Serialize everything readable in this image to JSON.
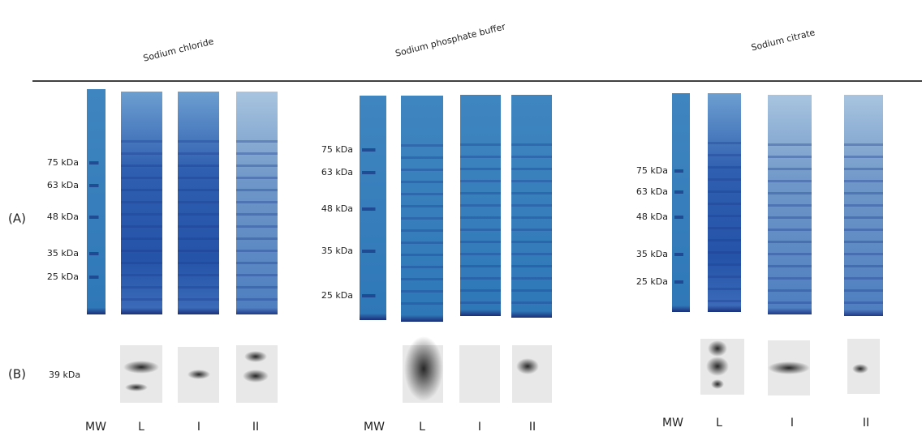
{
  "panels": [
    {
      "title": "Sodium chloride",
      "markers": [
        "75 kDa",
        "63 kDa",
        "48 kDa",
        "35 kDa",
        "25 kDa"
      ],
      "lanes": [
        "MW",
        "L",
        "I",
        "II"
      ]
    },
    {
      "title": "Sodium phosphate buffer",
      "markers": [
        "75 kDa",
        "63 kDa",
        "48 kDa",
        "35 kDa",
        "25 kDa"
      ],
      "lanes": [
        "MW",
        "L",
        "I",
        "II"
      ]
    },
    {
      "title": "Sodium citrate",
      "markers": [
        "75 kDa",
        "63 kDa",
        "48 kDa",
        "35 kDa",
        "25 kDa"
      ],
      "lanes": [
        "MW",
        "L",
        "I",
        "II"
      ]
    }
  ],
  "row_labels": [
    "(A)",
    "(B)"
  ],
  "western_marker": "39 kDa"
}
